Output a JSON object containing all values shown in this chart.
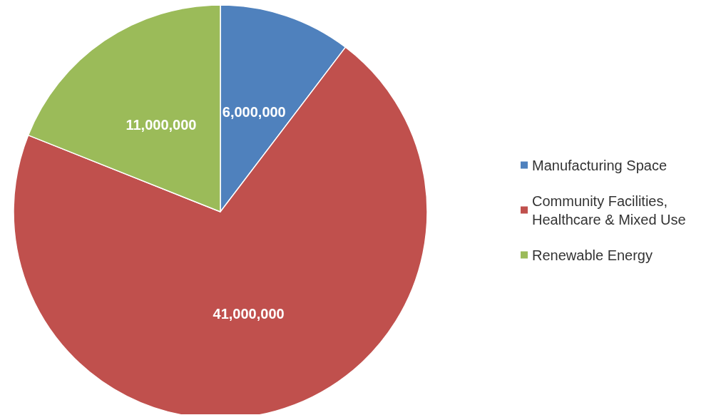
{
  "chart_data": {
    "type": "pie",
    "categories": [
      "Manufacturing Space",
      "Community Facilities, Healthcare & Mixed Use",
      "Renewable Energy"
    ],
    "values": [
      6000000,
      41000000,
      11000000
    ],
    "value_labels": [
      "6,000,000",
      "41,000,000",
      "11,000,000"
    ],
    "colors": [
      "#4f81bd",
      "#c0504d",
      "#9bbb59"
    ],
    "legend": "right"
  }
}
